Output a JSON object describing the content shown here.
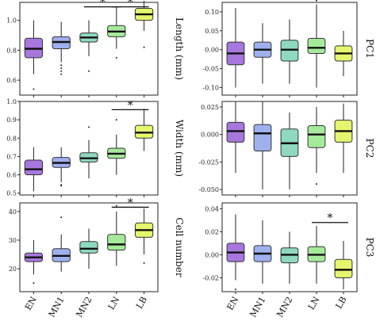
{
  "colors": {
    "EN": "#a777dd",
    "MN1": "#9fb0ee",
    "MN2": "#8ed9c0",
    "LN": "#a5ea9a",
    "LB": "#e5f56d",
    "whisker": "#222222"
  },
  "chart_data": [
    {
      "type": "box",
      "categories": [
        "EN",
        "MN1",
        "MN2",
        "LN",
        "LB"
      ],
      "ylabel": "Length (mm)",
      "ylim": [
        0.5,
        1.12
      ],
      "ticks": [
        "0.6",
        "0.8",
        "1.0"
      ],
      "tick_values": [
        0.6,
        0.8,
        1.0
      ],
      "boxes": [
        {
          "q1": 0.75,
          "median": 0.81,
          "q3": 0.88,
          "wlow": 0.64,
          "whigh": 1.0,
          "outliers": [
            0.54
          ]
        },
        {
          "q1": 0.81,
          "median": 0.855,
          "q3": 0.89,
          "wlow": 0.72,
          "whigh": 0.99,
          "outliers": [
            0.64,
            0.66,
            0.68,
            0.7
          ]
        },
        {
          "q1": 0.855,
          "median": 0.885,
          "q3": 0.915,
          "wlow": 0.76,
          "whigh": 1.0,
          "outliers": [
            0.66
          ]
        },
        {
          "q1": 0.89,
          "median": 0.925,
          "q3": 0.965,
          "wlow": 0.81,
          "whigh": 1.09,
          "outliers": [
            0.75
          ]
        },
        {
          "q1": 1.0,
          "median": 1.04,
          "q3": 1.08,
          "wlow": 0.93,
          "whigh": 1.13,
          "outliers": [
            0.82
          ]
        }
      ],
      "significance": [
        {
          "from": 2,
          "to": 3,
          "label": "*",
          "y": 1.09
        },
        {
          "from": 3,
          "to": 4,
          "label": "*",
          "y": 1.09
        }
      ]
    },
    {
      "type": "box",
      "categories": [
        "EN",
        "MN1",
        "MN2",
        "LN",
        "LB"
      ],
      "ylabel": "Width (mm)",
      "ylim": [
        0.49,
        1.0
      ],
      "ticks": [
        "0.5",
        "0.6",
        "0.7",
        "0.8",
        "0.9",
        "1.0"
      ],
      "tick_values": [
        0.5,
        0.6,
        0.7,
        0.8,
        0.9,
        1.0
      ],
      "boxes": [
        {
          "q1": 0.6,
          "median": 0.63,
          "q3": 0.68,
          "wlow": 0.51,
          "whigh": 0.75,
          "outliers": []
        },
        {
          "q1": 0.64,
          "median": 0.665,
          "q3": 0.695,
          "wlow": 0.56,
          "whigh": 0.75,
          "outliers": [
            0.545,
            0.54
          ]
        },
        {
          "q1": 0.67,
          "median": 0.69,
          "q3": 0.72,
          "wlow": 0.58,
          "whigh": 0.79,
          "outliers": [
            0.86
          ]
        },
        {
          "q1": 0.69,
          "median": 0.715,
          "q3": 0.745,
          "wlow": 0.6,
          "whigh": 0.82,
          "outliers": [
            0.9
          ]
        },
        {
          "q1": 0.8,
          "median": 0.83,
          "q3": 0.87,
          "wlow": 0.73,
          "whigh": 0.96,
          "outliers": []
        }
      ],
      "significance": [
        {
          "from": 3,
          "to": 4,
          "label": "*",
          "y": 0.955
        }
      ]
    },
    {
      "type": "box",
      "categories": [
        "EN",
        "MN1",
        "MN2",
        "LN",
        "LB"
      ],
      "ylabel": "Cell number",
      "ylim": [
        12,
        43
      ],
      "ticks": [
        "20",
        "30",
        "40"
      ],
      "tick_values": [
        20,
        30,
        40
      ],
      "boxes": [
        {
          "q1": 22.5,
          "median": 24,
          "q3": 25.5,
          "wlow": 18,
          "whigh": 30,
          "outliers": [
            15
          ]
        },
        {
          "q1": 22.5,
          "median": 24.5,
          "q3": 27,
          "wlow": 19,
          "whigh": 32,
          "outliers": [
            38
          ]
        },
        {
          "q1": 25.5,
          "median": 27,
          "q3": 29.5,
          "wlow": 20,
          "whigh": 34,
          "outliers": []
        },
        {
          "q1": 26.5,
          "median": 28.5,
          "q3": 32,
          "wlow": 21,
          "whigh": 40,
          "outliers": [
            42
          ]
        },
        {
          "q1": 31,
          "median": 33.5,
          "q3": 36,
          "wlow": 25,
          "whigh": 41,
          "outliers": [
            22
          ]
        }
      ],
      "significance": [
        {
          "from": 3,
          "to": 4,
          "label": "*",
          "y": 41.5
        }
      ]
    },
    {
      "type": "box",
      "categories": [
        "EN",
        "MN1",
        "MN2",
        "LN",
        "LB"
      ],
      "ylabel": "PC1",
      "ylim": [
        -0.12,
        0.125
      ],
      "ticks": [
        "0.10",
        "0.05",
        "0.00",
        "-0.05",
        "-0.10"
      ],
      "tick_values": [
        0.1,
        0.05,
        0.0,
        -0.05,
        -0.1
      ],
      "boxes": [
        {
          "q1": -0.04,
          "median": -0.01,
          "q3": 0.02,
          "wlow": -0.1,
          "whigh": 0.11,
          "outliers": []
        },
        {
          "q1": -0.02,
          "median": 0.0,
          "q3": 0.02,
          "wlow": -0.09,
          "whigh": 0.07,
          "outliers": []
        },
        {
          "q1": -0.03,
          "median": 0.0,
          "q3": 0.025,
          "wlow": -0.09,
          "whigh": 0.08,
          "outliers": []
        },
        {
          "q1": -0.01,
          "median": 0.005,
          "q3": 0.03,
          "wlow": -0.1,
          "whigh": 0.12,
          "outliers": [
            0.13
          ]
        },
        {
          "q1": -0.03,
          "median": -0.01,
          "q3": 0.01,
          "wlow": -0.07,
          "whigh": 0.05,
          "outliers": []
        }
      ],
      "significance": []
    },
    {
      "type": "box",
      "categories": [
        "EN",
        "MN1",
        "MN2",
        "LN",
        "LB"
      ],
      "ylabel": "PC2",
      "ylim": [
        -0.055,
        0.03
      ],
      "ticks": [
        "0.025",
        "0.000",
        "-0.025",
        "-0.050"
      ],
      "tick_values": [
        0.025,
        0.0,
        -0.025,
        -0.05
      ],
      "boxes": [
        {
          "q1": -0.007,
          "median": 0.003,
          "q3": 0.011,
          "wlow": -0.035,
          "whigh": 0.03,
          "outliers": []
        },
        {
          "q1": -0.015,
          "median": 0.001,
          "q3": 0.009,
          "wlow": -0.05,
          "whigh": 0.03,
          "outliers": []
        },
        {
          "q1": -0.02,
          "median": -0.008,
          "q3": 0.005,
          "wlow": -0.05,
          "whigh": 0.02,
          "outliers": []
        },
        {
          "q1": -0.012,
          "median": 0.0,
          "q3": 0.008,
          "wlow": -0.035,
          "whigh": 0.025,
          "outliers": [
            -0.045
          ]
        },
        {
          "q1": -0.007,
          "median": 0.003,
          "q3": 0.013,
          "wlow": -0.035,
          "whigh": 0.028,
          "outliers": []
        }
      ],
      "significance": []
    },
    {
      "type": "box",
      "categories": [
        "EN",
        "MN1",
        "MN2",
        "LN",
        "LB"
      ],
      "ylabel": "PC3",
      "ylim": [
        -0.032,
        0.045
      ],
      "ticks": [
        "0.04",
        "0.02",
        "0.00",
        "-0.02"
      ],
      "tick_values": [
        0.04,
        0.02,
        0.0,
        -0.02
      ],
      "boxes": [
        {
          "q1": -0.006,
          "median": 0.002,
          "q3": 0.01,
          "wlow": -0.022,
          "whigh": 0.035,
          "outliers": [
            -0.03
          ]
        },
        {
          "q1": -0.006,
          "median": 0.001,
          "q3": 0.008,
          "wlow": -0.025,
          "whigh": 0.03,
          "outliers": []
        },
        {
          "q1": -0.007,
          "median": 0.0,
          "q3": 0.006,
          "wlow": -0.025,
          "whigh": 0.02,
          "outliers": []
        },
        {
          "q1": -0.006,
          "median": 0.0,
          "q3": 0.007,
          "wlow": -0.025,
          "whigh": 0.025,
          "outliers": []
        },
        {
          "q1": -0.02,
          "median": -0.013,
          "q3": -0.004,
          "wlow": -0.03,
          "whigh": 0.012,
          "outliers": []
        }
      ],
      "significance": [
        {
          "from": 3,
          "to": 4,
          "label": "*",
          "y": 0.028
        }
      ]
    }
  ],
  "x_labels": [
    "EN",
    "MN1",
    "MN2",
    "LN",
    "LB"
  ]
}
